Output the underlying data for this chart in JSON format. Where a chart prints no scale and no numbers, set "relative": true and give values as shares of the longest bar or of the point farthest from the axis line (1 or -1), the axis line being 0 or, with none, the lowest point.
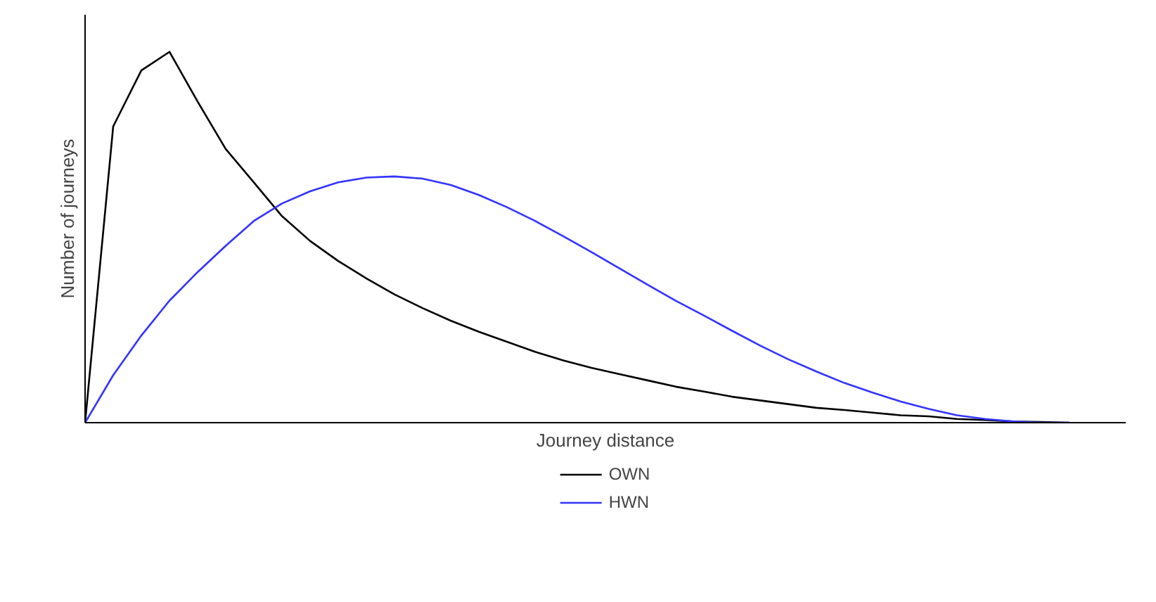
{
  "chart_data": {
    "type": "line",
    "relative": true,
    "xlabel": "Journey distance",
    "ylabel": "Number of journeys",
    "categories": [
      null,
      null,
      null,
      null,
      null,
      null,
      null,
      null,
      null,
      null,
      null,
      null,
      null,
      null,
      null,
      null,
      null,
      null,
      null,
      null,
      null,
      null,
      null,
      null,
      null,
      null,
      null,
      null,
      null,
      null,
      null,
      null,
      null,
      null,
      null,
      null,
      null,
      null
    ],
    "series": [
      {
        "name": "OWN",
        "color": "#000000",
        "values": [
          0,
          0.799,
          0.95,
          1.0,
          0.866,
          0.738,
          0.648,
          0.557,
          0.49,
          0.436,
          0.389,
          0.346,
          0.309,
          0.275,
          0.245,
          0.218,
          0.191,
          0.168,
          0.148,
          0.131,
          0.114,
          0.097,
          0.084,
          0.07,
          0.06,
          0.05,
          0.04,
          0.034,
          0.027,
          0.02,
          0.017,
          0.01,
          0.007,
          0.003,
          0.002,
          0,
          null,
          null
        ]
      },
      {
        "name": "HWN",
        "color": "#3333ff",
        "values": [
          0,
          0.128,
          0.235,
          0.329,
          0.406,
          0.477,
          0.544,
          0.591,
          0.624,
          0.648,
          0.661,
          0.664,
          0.658,
          0.641,
          0.614,
          0.581,
          0.544,
          0.503,
          0.46,
          0.416,
          0.372,
          0.329,
          0.289,
          0.248,
          0.208,
          0.171,
          0.138,
          0.107,
          0.081,
          0.057,
          0.037,
          0.02,
          0.01,
          0.003,
          0,
          0,
          null,
          null
        ]
      }
    ],
    "legend": "bottom",
    "marker": "none",
    "line_style": "solid"
  }
}
